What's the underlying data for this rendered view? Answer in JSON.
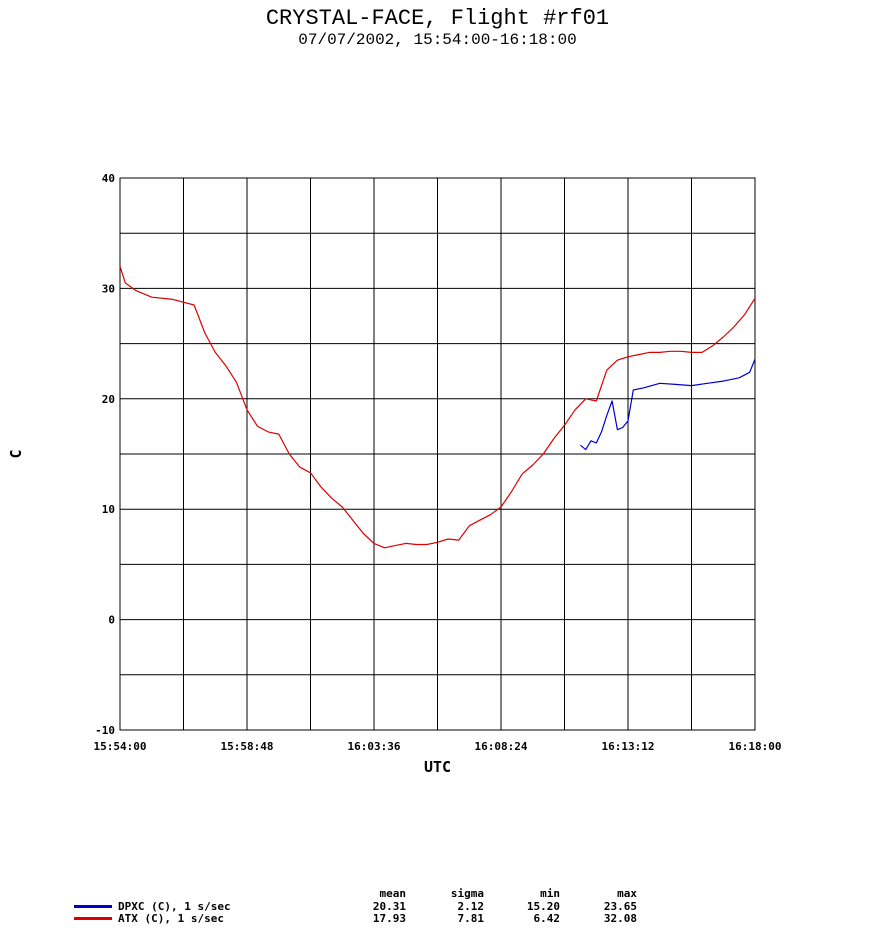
{
  "title": "CRYSTAL-FACE, Flight #rf01",
  "subtitle": "07/07/2002, 15:54:00-16:18:00",
  "chart_data": {
    "type": "line",
    "xlabel": "UTC",
    "ylabel": "C",
    "x_tick_labels": [
      "15:54:00",
      "15:58:48",
      "16:03:36",
      "16:08:24",
      "16:13:12",
      "16:18:00"
    ],
    "xlim": [
      "15:54:00",
      "16:18:00"
    ],
    "ylim": [
      -10,
      40
    ],
    "y_tick_labels": [
      "-10",
      "0",
      "10",
      "20",
      "30",
      "40"
    ],
    "grid": true,
    "series": [
      {
        "name": "DPXC (C), 1 s/sec",
        "color": "#0000cc",
        "x": [
          "16:11:24",
          "16:11:36",
          "16:11:48",
          "16:12:00",
          "16:12:12",
          "16:12:24",
          "16:12:36",
          "16:12:48",
          "16:13:00",
          "16:13:12",
          "16:13:24",
          "16:13:48",
          "16:14:24",
          "16:15:00",
          "16:15:36",
          "16:16:12",
          "16:16:48",
          "16:17:24",
          "16:17:48",
          "16:18:00"
        ],
        "y": [
          15.8,
          15.4,
          16.2,
          16.0,
          17.0,
          18.5,
          19.8,
          17.2,
          17.4,
          18.0,
          20.8,
          21.0,
          21.4,
          21.3,
          21.2,
          21.4,
          21.6,
          21.9,
          22.4,
          23.6
        ]
      },
      {
        "name": "ATX (C), 1 s/sec",
        "color": "#dd0000",
        "x": [
          "15:54:00",
          "15:54:12",
          "15:54:36",
          "15:55:12",
          "15:56:00",
          "15:56:48",
          "15:57:12",
          "15:57:36",
          "15:58:00",
          "15:58:24",
          "15:58:48",
          "15:59:12",
          "15:59:36",
          "16:00:00",
          "16:00:24",
          "16:00:48",
          "16:01:12",
          "16:01:36",
          "16:02:00",
          "16:02:24",
          "16:02:48",
          "16:03:12",
          "16:03:36",
          "16:04:00",
          "16:04:24",
          "16:04:48",
          "16:05:12",
          "16:05:36",
          "16:06:00",
          "16:06:24",
          "16:06:48",
          "16:07:12",
          "16:07:36",
          "16:08:00",
          "16:08:24",
          "16:08:48",
          "16:09:12",
          "16:09:36",
          "16:10:00",
          "16:10:24",
          "16:10:48",
          "16:11:12",
          "16:11:36",
          "16:12:00",
          "16:12:24",
          "16:12:48",
          "16:13:12",
          "16:13:36",
          "16:14:00",
          "16:14:24",
          "16:14:48",
          "16:15:12",
          "16:15:36",
          "16:16:00",
          "16:16:24",
          "16:16:48",
          "16:17:12",
          "16:17:36",
          "16:18:00"
        ],
        "y": [
          32.0,
          30.5,
          29.8,
          29.2,
          29.0,
          28.5,
          26.0,
          24.2,
          23.0,
          21.5,
          19.0,
          17.5,
          17.0,
          16.8,
          15.0,
          13.8,
          13.3,
          12.0,
          11.0,
          10.2,
          9.0,
          7.8,
          6.9,
          6.5,
          6.7,
          6.9,
          6.8,
          6.8,
          7.0,
          7.3,
          7.2,
          8.5,
          9.0,
          9.5,
          10.2,
          11.6,
          13.2,
          14.0,
          15.0,
          16.4,
          17.6,
          19.0,
          20.0,
          19.8,
          22.6,
          23.5,
          23.8,
          24.0,
          24.2,
          24.2,
          24.3,
          24.3,
          24.2,
          24.2,
          24.8,
          25.6,
          26.5,
          27.6,
          29.1
        ]
      }
    ],
    "stats": {
      "headers": [
        "mean",
        "sigma",
        "min",
        "max"
      ],
      "rows": [
        {
          "name": "DPXC (C), 1 s/sec",
          "color": "#0000cc",
          "values": [
            "20.31",
            "2.12",
            "15.20",
            "23.65"
          ]
        },
        {
          "name": "ATX (C), 1 s/sec",
          "color": "#dd0000",
          "values": [
            "17.93",
            "7.81",
            "6.42",
            "32.08"
          ]
        }
      ]
    }
  }
}
